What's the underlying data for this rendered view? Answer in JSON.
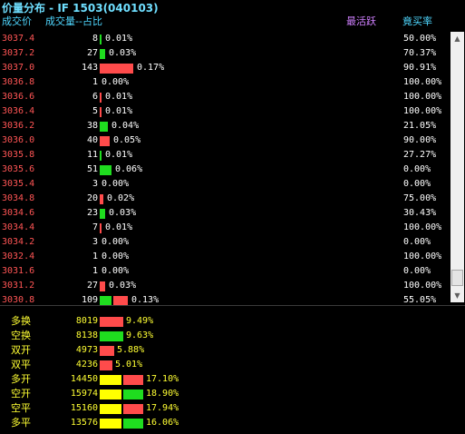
{
  "title": "价量分布 - IF 1503(040103)",
  "headers": {
    "price": "成交价",
    "volume": "成交量--占比",
    "most_active": "最活跃",
    "buy_ratio": "竟买率"
  },
  "colors": {
    "red": "#ff4b4b",
    "green": "#1fdd1f",
    "yellow": "#ffff00"
  },
  "rows": [
    {
      "price": "3037.4",
      "volume": "8",
      "bar": "green",
      "pct": "0.01%",
      "share": 0.01,
      "buy": "50.00%"
    },
    {
      "price": "3037.2",
      "volume": "27",
      "bar": "green",
      "pct": "0.03%",
      "share": 0.03,
      "buy": "70.37%"
    },
    {
      "price": "3037.0",
      "volume": "143",
      "bar": "red",
      "pct": "0.17%",
      "share": 0.17,
      "buy": "90.91%"
    },
    {
      "price": "3036.8",
      "volume": "1",
      "bar": "",
      "pct": "0.00%",
      "share": 0.0,
      "buy": "100.00%"
    },
    {
      "price": "3036.6",
      "volume": "6",
      "bar": "red",
      "pct": "0.01%",
      "share": 0.01,
      "buy": "100.00%"
    },
    {
      "price": "3036.4",
      "volume": "5",
      "bar": "red",
      "pct": "0.01%",
      "share": 0.01,
      "buy": "100.00%"
    },
    {
      "price": "3036.2",
      "volume": "38",
      "bar": "green",
      "pct": "0.04%",
      "share": 0.04,
      "buy": "21.05%"
    },
    {
      "price": "3036.0",
      "volume": "40",
      "bar": "red",
      "pct": "0.05%",
      "share": 0.05,
      "buy": "90.00%"
    },
    {
      "price": "3035.8",
      "volume": "11",
      "bar": "green",
      "pct": "0.01%",
      "share": 0.01,
      "buy": "27.27%"
    },
    {
      "price": "3035.6",
      "volume": "51",
      "bar": "green",
      "pct": "0.06%",
      "share": 0.06,
      "buy": "0.00%"
    },
    {
      "price": "3035.4",
      "volume": "3",
      "bar": "",
      "pct": "0.00%",
      "share": 0.0,
      "buy": "0.00%"
    },
    {
      "price": "3034.8",
      "volume": "20",
      "bar": "red",
      "pct": "0.02%",
      "share": 0.02,
      "buy": "75.00%"
    },
    {
      "price": "3034.6",
      "volume": "23",
      "bar": "green",
      "pct": "0.03%",
      "share": 0.03,
      "buy": "30.43%"
    },
    {
      "price": "3034.4",
      "volume": "7",
      "bar": "red",
      "pct": "0.01%",
      "share": 0.01,
      "buy": "100.00%"
    },
    {
      "price": "3034.2",
      "volume": "3",
      "bar": "",
      "pct": "0.00%",
      "share": 0.0,
      "buy": "0.00%"
    },
    {
      "price": "3032.4",
      "volume": "1",
      "bar": "",
      "pct": "0.00%",
      "share": 0.0,
      "buy": "100.00%"
    },
    {
      "price": "3031.6",
      "volume": "1",
      "bar": "",
      "pct": "0.00%",
      "share": 0.0,
      "buy": "0.00%"
    },
    {
      "price": "3031.2",
      "volume": "27",
      "bar": "red",
      "pct": "0.03%",
      "share": 0.03,
      "buy": "100.00%"
    },
    {
      "price": "3030.8",
      "volume": "109",
      "bar": "green+red",
      "pct": "0.13%",
      "share": 0.13,
      "buy": "55.05%"
    }
  ],
  "summary": [
    {
      "label": "多换",
      "value": "8019",
      "pct": "9.49%",
      "bars": [
        "red"
      ]
    },
    {
      "label": "空换",
      "value": "8138",
      "pct": "9.63%",
      "bars": [
        "green"
      ]
    },
    {
      "label": "双开",
      "value": "4973",
      "pct": "5.88%",
      "bars": [
        "red"
      ]
    },
    {
      "label": "双平",
      "value": "4236",
      "pct": "5.01%",
      "bars": [
        "red"
      ]
    },
    {
      "label": "多开",
      "value": "14450",
      "pct": "17.10%",
      "bars": [
        "yellow",
        "red"
      ]
    },
    {
      "label": "空开",
      "value": "15974",
      "pct": "18.90%",
      "bars": [
        "yellow",
        "green"
      ]
    },
    {
      "label": "空平",
      "value": "15160",
      "pct": "17.94%",
      "bars": [
        "yellow",
        "red"
      ]
    },
    {
      "label": "多平",
      "value": "13576",
      "pct": "16.06%",
      "bars": [
        "yellow",
        "green"
      ]
    }
  ]
}
